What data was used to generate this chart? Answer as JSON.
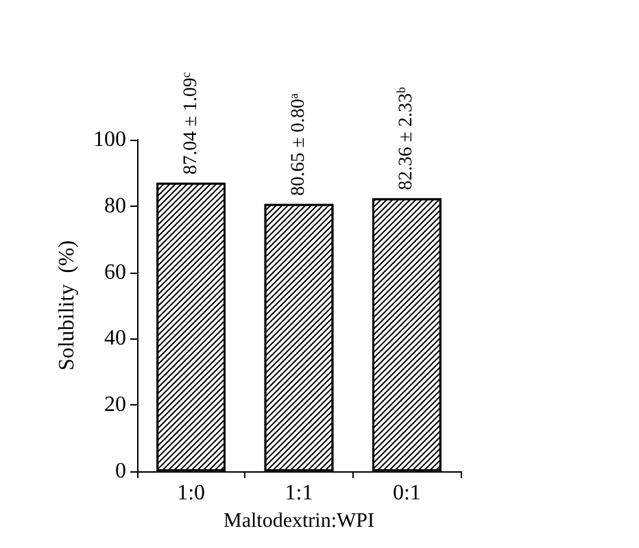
{
  "chart_data": {
    "type": "bar",
    "xlabel": "Maltodextrin:WPI",
    "ylabel": "Solubility  (%)",
    "categories": [
      "1:0",
      "1:1",
      "0:1"
    ],
    "values": [
      87.04,
      80.65,
      82.36
    ],
    "value_labels": [
      "87.04 ± 1.09$^{c}$",
      "80.65 ± 0.80$^{a}$",
      "82.36 ± 2.33$^{b}$"
    ],
    "color": "#000000",
    "ylim": [
      0,
      100
    ],
    "yticks": [
      0,
      20,
      40,
      60,
      80,
      100
    ],
    "grid": false
  }
}
